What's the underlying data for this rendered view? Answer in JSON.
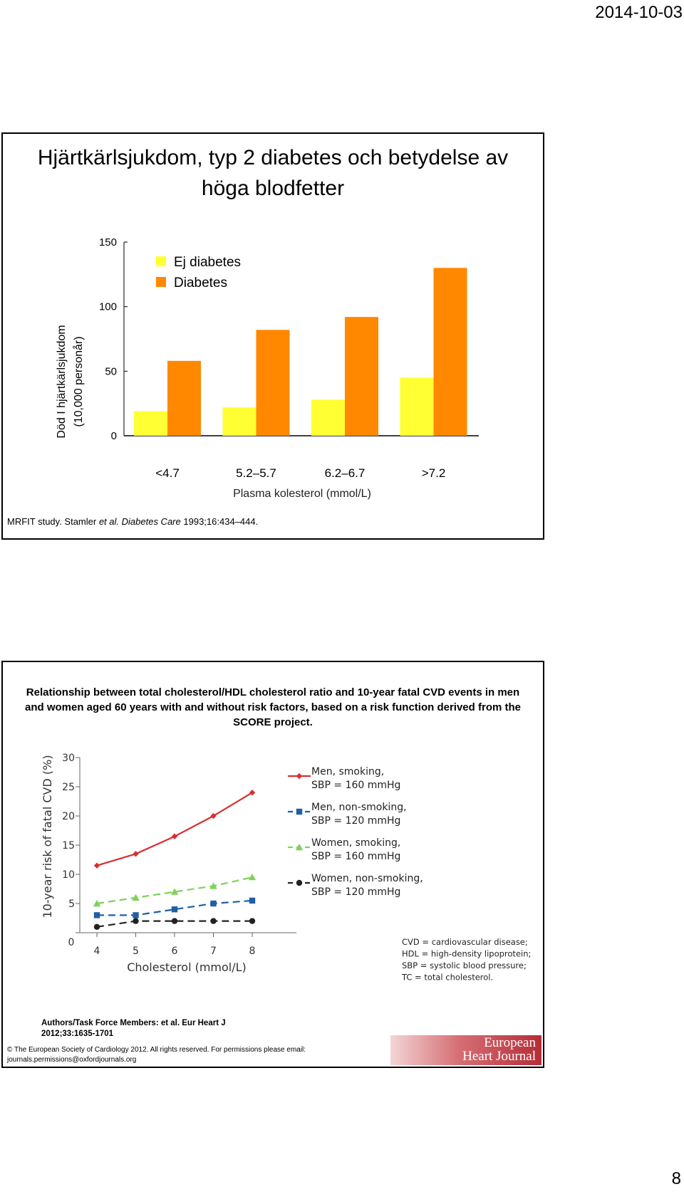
{
  "header": {
    "date": "2014-10-03"
  },
  "footer": {
    "page_number": "8"
  },
  "slide1": {
    "title": "Hjärtkärlsjukdom, typ 2 diabetes och betydelse av höga blodfetter",
    "citation": {
      "prefix": "MRFIT study. Stamler ",
      "etal": "et al.",
      "journal": "Diabetes Care",
      "rest": "1993;16:434–444."
    },
    "colors": {
      "ej_diabetes": "#FFFF33",
      "diabetes": "#FF8800"
    }
  },
  "slide2": {
    "title": "Relationship between total cholesterol/HDL cholesterol ratio and 10-year fatal CVD events in men and women aged 60 years with and without risk factors, based on a risk function derived from the SCORE project.",
    "authors_line1": "Authors/Task Force Members: et al. Eur Heart J",
    "authors_line2": "2012;33:1635-1701",
    "copyright_line1": "© The European Society of Cardiology 2012. All rights reserved. For permissions please email:",
    "copyright_line2": "journals.permissions@oxfordjournals.org",
    "logo_line1": "European",
    "logo_line2": "Heart Journal",
    "abbreviations": [
      "CVD = cardiovascular disease;",
      "HDL = high-density lipoprotein;",
      "SBP = systolic blood pressure;",
      "TC = total cholesterol."
    ]
  },
  "chart_data": [
    {
      "type": "bar",
      "categories": [
        "<4.7",
        "5.2–5.7",
        "6.2–6.7",
        ">7.2"
      ],
      "series": [
        {
          "name": "Ej diabetes",
          "values": [
            19,
            22,
            28,
            45
          ],
          "color": "#FFFF33"
        },
        {
          "name": "Diabetes",
          "values": [
            58,
            82,
            92,
            130
          ],
          "color": "#FF8800"
        }
      ],
      "xlabel": "Plasma kolesterol (mmol/L)",
      "ylabel": "Död I hjärtkärlsjukdom (10,000 personår)",
      "ylim": [
        0,
        150
      ],
      "yticks": [
        0,
        50,
        100,
        150
      ],
      "legend": "top-left",
      "grid": false
    },
    {
      "type": "line",
      "x": [
        4,
        5,
        6,
        7,
        8
      ],
      "series": [
        {
          "name": "Men, smoking, SBP = 160 mmHg",
          "label_line1": "Men, smoking,",
          "label_line2": "SBP = 160 mmHg",
          "values": [
            11.5,
            13.5,
            16.5,
            20,
            24
          ],
          "color": "#d63031",
          "marker": "diamond",
          "dash": "solid"
        },
        {
          "name": "Men, non-smoking, SBP = 120 mmHg",
          "label_line1": "Men, non-smoking,",
          "label_line2": "SBP = 120 mmHg",
          "values": [
            3,
            3,
            4,
            5,
            5.5
          ],
          "color": "#1f5fa8",
          "marker": "square",
          "dash": "dashed"
        },
        {
          "name": "Women, smoking, SBP = 160 mmHg",
          "label_line1": "Women, smoking,",
          "label_line2": "SBP = 160 mmHg",
          "values": [
            5,
            6,
            7,
            8,
            9.5
          ],
          "color": "#7fd15a",
          "marker": "triangle",
          "dash": "dashed"
        },
        {
          "name": "Women, non-smoking, SBP = 120 mmHg",
          "label_line1": "Women, non-smoking,",
          "label_line2": "SBP = 120 mmHg",
          "values": [
            1,
            2,
            2,
            2,
            2
          ],
          "color": "#222222",
          "marker": "circle",
          "dash": "dashed"
        }
      ],
      "xlabel": "Cholesterol (mmol/L)",
      "ylabel": "10-year risk of fatal CVD (%)",
      "xlim": [
        4,
        8
      ],
      "ylim": [
        0,
        30
      ],
      "yticks": [
        0,
        5,
        10,
        15,
        20,
        25,
        30
      ],
      "xticks": [
        4,
        5,
        6,
        7,
        8
      ],
      "legend": "right",
      "grid": false
    }
  ]
}
